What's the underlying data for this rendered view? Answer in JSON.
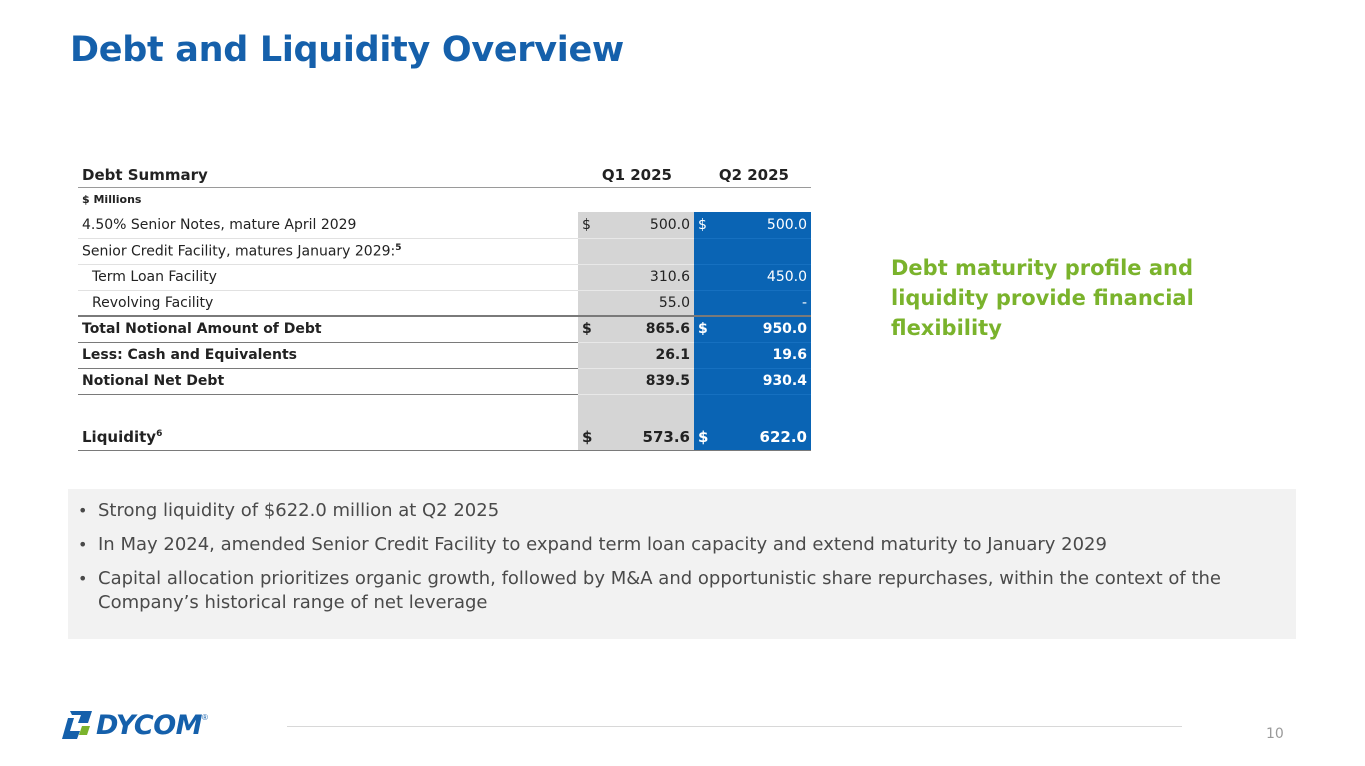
{
  "title": "Debt and Liquidity Overview",
  "table": {
    "header": {
      "label": "Debt Summary",
      "q1": "Q1 2025",
      "q2": "Q2 2025"
    },
    "units": "$ Millions",
    "rows": [
      {
        "label": "4.50% Senior Notes, mature April 2029",
        "q1_cur": "$",
        "q1": "500.0",
        "q2_cur": "$",
        "q2": "500.0"
      },
      {
        "label": "Senior Credit Facility, matures January 2029:",
        "sup": "5",
        "q1_cur": "",
        "q1": "",
        "q2_cur": "",
        "q2": ""
      },
      {
        "label": "Term Loan Facility",
        "q1_cur": "",
        "q1": "310.6",
        "q2_cur": "",
        "q2": "450.0"
      },
      {
        "label": "Revolving Facility",
        "q1_cur": "",
        "q1": "55.0",
        "q2_cur": "",
        "q2": "-"
      },
      {
        "label": "Total Notional Amount of Debt",
        "q1_cur": "$",
        "q1": "865.6",
        "q2_cur": "$",
        "q2": "950.0"
      },
      {
        "label": "Less: Cash and Equivalents",
        "q1_cur": "",
        "q1": "26.1",
        "q2_cur": "",
        "q2": "19.6"
      },
      {
        "label": "Notional Net Debt",
        "q1_cur": "",
        "q1": "839.5",
        "q2_cur": "",
        "q2": "930.4"
      },
      {
        "label": "Liquidity",
        "sup": "6",
        "q1_cur": "$",
        "q1": "573.6",
        "q2_cur": "$",
        "q2": "622.0"
      }
    ]
  },
  "callout": "Debt maturity profile and liquidity provide financial flexibility",
  "bullets": [
    "Strong liquidity of $622.0 million at Q2 2025",
    "In May 2024, amended Senior Credit Facility to expand term loan capacity and extend maturity to January 2029",
    "Capital allocation prioritizes organic growth, followed by M&A and opportunistic share repurchases, within the context of the Company’s historical range of net leverage"
  ],
  "bullet_glyph": "•",
  "logo": {
    "word": "DYCOM",
    "reg": "®"
  },
  "page_number": "10",
  "colors": {
    "title": "#1560ab",
    "accent_green": "#7ab32c",
    "q2_fill": "#0a64b4",
    "q1_fill": "#d5d5d5",
    "panel": "#f2f2f2"
  }
}
